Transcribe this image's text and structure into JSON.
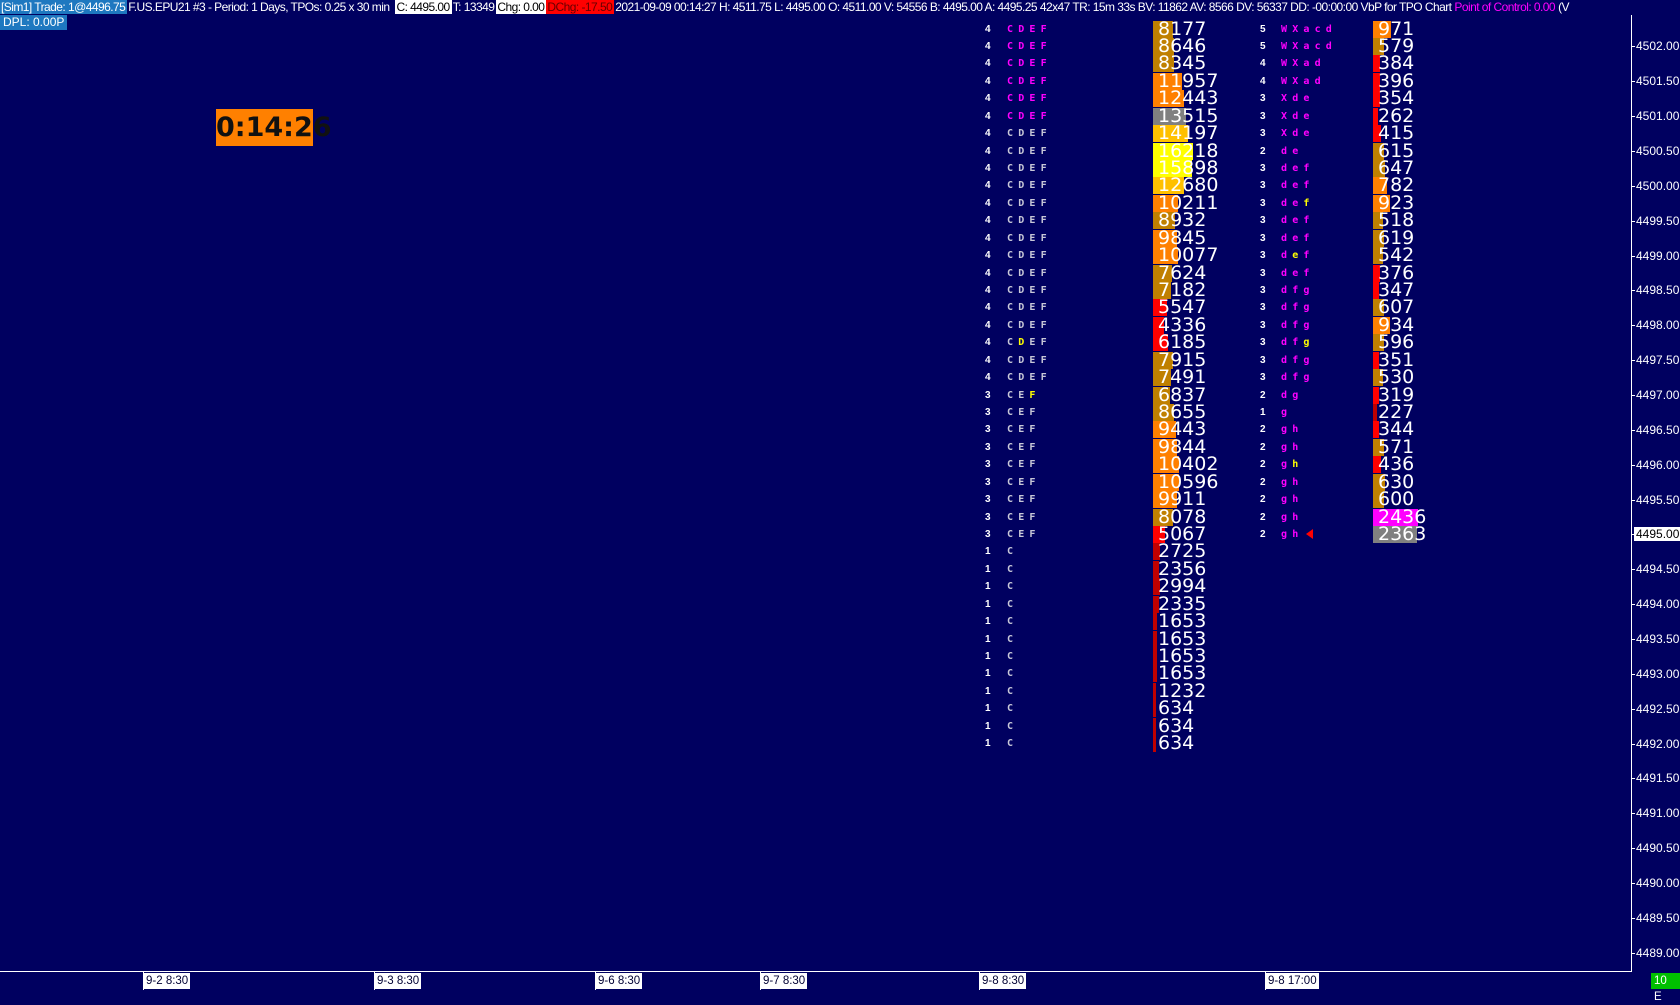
{
  "header": {
    "account_trade": "[Sim1]  Trade: 1@4496.75",
    "symbol_info": "F.US.EPU21  #3 - Period: 1 Days, TPOs: 0.25 x 30 min",
    "close": "C: 4495.00",
    "ticks": "T: 13349",
    "chg": "Chg: 0.00",
    "dchg": "DChg: -17.50",
    "stats": "2021-09-09 00:14:27 H: 4511.75 L: 4495.00 O: 4511.00 V: 54556 B: 4495.00 A: 4495.25 42x47 TR: 15m 33s BV: 11862 AV: 8566 DV: 56337 DD: -00:00:00 VbP for TPO Chart",
    "poc": "Point of Control: 0.00",
    "cut": "(V",
    "dpl": "DPL: 0.00P"
  },
  "timer": "0:14:26",
  "colors": {
    "background": "#000060",
    "gold": "#c08000",
    "orange": "#ff8000",
    "amber": "#ffc000",
    "yellow": "#ffff00",
    "gray": "#808080",
    "red": "#ff0000",
    "darkred": "#c00000",
    "magenta": "#ff00ff",
    "tpo_magenta": "#ff00ff",
    "tpo_gray": "#c8c8d8",
    "tpo_highlight": "#ffff00"
  },
  "price_axis": {
    "labels": [
      "4502.00",
      "4501.50",
      "4501.00",
      "4500.50",
      "4500.00",
      "4499.50",
      "4499.00",
      "4498.50",
      "4498.00",
      "4497.50",
      "4497.00",
      "4496.50",
      "4496.00",
      "4495.50",
      "4495.00",
      "4494.50",
      "4494.00",
      "4493.50",
      "4493.00",
      "4492.50",
      "4492.00",
      "4491.50",
      "4491.00",
      "4490.50",
      "4490.00",
      "4489.50",
      "4489.00"
    ],
    "current": "4495.00"
  },
  "time_axis": {
    "labels": [
      "9-2  8:30",
      "9-3  8:30",
      "9-6  8:30",
      "9-7  8:30",
      "9-8  8:30",
      "9-8  17:00"
    ],
    "badge": "10 E"
  },
  "profiles": [
    {
      "rows": [
        {
          "price": 4502.25,
          "count": "4",
          "letters": "CDEF",
          "vol": "8177",
          "color": "gold",
          "tpo": "magenta"
        },
        {
          "price": 4502.0,
          "count": "4",
          "letters": "CDEF",
          "vol": "8646",
          "color": "gold",
          "tpo": "magenta"
        },
        {
          "price": 4501.75,
          "count": "4",
          "letters": "CDEF",
          "vol": "8345",
          "color": "gold",
          "tpo": "magenta"
        },
        {
          "price": 4501.5,
          "count": "4",
          "letters": "CDEF",
          "vol": "11957",
          "color": "orange",
          "tpo": "magenta"
        },
        {
          "price": 4501.25,
          "count": "4",
          "letters": "CDEF",
          "vol": "12443",
          "color": "orange",
          "tpo": "magenta"
        },
        {
          "price": 4501.0,
          "count": "4",
          "letters": "CDEF",
          "vol": "13515",
          "color": "gray",
          "tpo": "magenta"
        },
        {
          "price": 4500.75,
          "count": "4",
          "letters": "CDEF",
          "vol": "14197",
          "color": "amber"
        },
        {
          "price": 4500.5,
          "count": "4",
          "letters": "CDEF",
          "vol": "16218",
          "color": "yellow"
        },
        {
          "price": 4500.25,
          "count": "4",
          "letters": "CDEF",
          "vol": "15898",
          "color": "yellow"
        },
        {
          "price": 4500.0,
          "count": "4",
          "letters": "CDEF",
          "vol": "12680",
          "color": "amber"
        },
        {
          "price": 4499.75,
          "count": "4",
          "letters": "CDEF",
          "vol": "10211",
          "color": "orange"
        },
        {
          "price": 4499.5,
          "count": "4",
          "letters": "CDEF",
          "vol": "8932",
          "color": "gold"
        },
        {
          "price": 4499.25,
          "count": "4",
          "letters": "CDEF",
          "vol": "9845",
          "color": "orange"
        },
        {
          "price": 4499.0,
          "count": "4",
          "letters": "CDEF",
          "vol": "10077",
          "color": "orange"
        },
        {
          "price": 4498.75,
          "count": "4",
          "letters": "CDEF",
          "vol": "7624",
          "color": "gold"
        },
        {
          "price": 4498.5,
          "count": "4",
          "letters": "CDEF",
          "vol": "7182",
          "color": "gold"
        },
        {
          "price": 4498.25,
          "count": "4",
          "letters": "CDEF",
          "vol": "5547",
          "color": "red"
        },
        {
          "price": 4498.0,
          "count": "4",
          "letters": "CDEF",
          "vol": "4336",
          "color": "red"
        },
        {
          "price": 4497.75,
          "count": "4",
          "letters": "CDEF",
          "vol": "6185",
          "color": "red",
          "hl": 1
        },
        {
          "price": 4497.5,
          "count": "4",
          "letters": "CDEF",
          "vol": "7915",
          "color": "gold"
        },
        {
          "price": 4497.25,
          "count": "4",
          "letters": "CDEF",
          "vol": "7491",
          "color": "gold"
        },
        {
          "price": 4497.0,
          "count": "3",
          "letters": "CEF",
          "vol": "6837",
          "color": "gold",
          "hl": 2
        },
        {
          "price": 4496.75,
          "count": "3",
          "letters": "CEF",
          "vol": "8655",
          "color": "gold"
        },
        {
          "price": 4496.5,
          "count": "3",
          "letters": "CEF",
          "vol": "9443",
          "color": "orange"
        },
        {
          "price": 4496.25,
          "count": "3",
          "letters": "CEF",
          "vol": "9844",
          "color": "orange"
        },
        {
          "price": 4496.0,
          "count": "3",
          "letters": "CEF",
          "vol": "10402",
          "color": "orange"
        },
        {
          "price": 4495.75,
          "count": "3",
          "letters": "CEF",
          "vol": "10596",
          "color": "orange"
        },
        {
          "price": 4495.5,
          "count": "3",
          "letters": "CEF",
          "vol": "9911",
          "color": "orange"
        },
        {
          "price": 4495.25,
          "count": "3",
          "letters": "CEF",
          "vol": "8078",
          "color": "gold"
        },
        {
          "price": 4495.0,
          "count": "3",
          "letters": "CEF",
          "vol": "5067",
          "color": "red"
        },
        {
          "price": 4494.75,
          "count": "1",
          "letters": "C",
          "vol": "2725",
          "color": "darkred"
        },
        {
          "price": 4494.5,
          "count": "1",
          "letters": "C",
          "vol": "2356",
          "color": "darkred"
        },
        {
          "price": 4494.25,
          "count": "1",
          "letters": "C",
          "vol": "2994",
          "color": "darkred"
        },
        {
          "price": 4494.0,
          "count": "1",
          "letters": "C",
          "vol": "2335",
          "color": "darkred"
        },
        {
          "price": 4493.75,
          "count": "1",
          "letters": "C",
          "vol": "1653",
          "color": "darkred"
        },
        {
          "price": 4493.5,
          "count": "1",
          "letters": "C",
          "vol": "1653",
          "color": "darkred"
        },
        {
          "price": 4493.25,
          "count": "1",
          "letters": "C",
          "vol": "1653",
          "color": "darkred"
        },
        {
          "price": 4493.0,
          "count": "1",
          "letters": "C",
          "vol": "1653",
          "color": "darkred"
        },
        {
          "price": 4492.75,
          "count": "1",
          "letters": "C",
          "vol": "1232",
          "color": "darkred"
        },
        {
          "price": 4492.5,
          "count": "1",
          "letters": "C",
          "vol": "634",
          "color": "darkred"
        },
        {
          "price": 4492.25,
          "count": "1",
          "letters": "C",
          "vol": "634",
          "color": "darkred"
        },
        {
          "price": 4492.0,
          "count": "1",
          "letters": "C",
          "vol": "634",
          "color": "darkred"
        }
      ]
    },
    {
      "rows": [
        {
          "price": 4502.25,
          "count": "5",
          "letters": "WXacd",
          "vol": "971",
          "color": "orange"
        },
        {
          "price": 4502.0,
          "count": "5",
          "letters": "WXacd",
          "vol": "579",
          "color": "gold"
        },
        {
          "price": 4501.75,
          "count": "4",
          "letters": "WXad",
          "vol": "384",
          "color": "red"
        },
        {
          "price": 4501.5,
          "count": "4",
          "letters": "WXad",
          "vol": "396",
          "color": "red"
        },
        {
          "price": 4501.25,
          "count": "3",
          "letters": "Xde",
          "vol": "354",
          "color": "red"
        },
        {
          "price": 4501.0,
          "count": "3",
          "letters": "Xde",
          "vol": "262",
          "color": "red"
        },
        {
          "price": 4500.75,
          "count": "3",
          "letters": "Xde",
          "vol": "415",
          "color": "red"
        },
        {
          "price": 4500.5,
          "count": "2",
          "letters": "de",
          "vol": "615",
          "color": "gold"
        },
        {
          "price": 4500.25,
          "count": "3",
          "letters": "def",
          "vol": "647",
          "color": "gold"
        },
        {
          "price": 4500.0,
          "count": "3",
          "letters": "def",
          "vol": "782",
          "color": "orange"
        },
        {
          "price": 4499.75,
          "count": "3",
          "letters": "def",
          "vol": "923",
          "color": "orange",
          "hl": 2
        },
        {
          "price": 4499.5,
          "count": "3",
          "letters": "def",
          "vol": "518",
          "color": "gold"
        },
        {
          "price": 4499.25,
          "count": "3",
          "letters": "def",
          "vol": "619",
          "color": "gold"
        },
        {
          "price": 4499.0,
          "count": "3",
          "letters": "def",
          "vol": "542",
          "color": "gold",
          "hl": 1
        },
        {
          "price": 4498.75,
          "count": "3",
          "letters": "def",
          "vol": "376",
          "color": "red"
        },
        {
          "price": 4498.5,
          "count": "3",
          "letters": "dfg",
          "vol": "347",
          "color": "red"
        },
        {
          "price": 4498.25,
          "count": "3",
          "letters": "dfg",
          "vol": "607",
          "color": "gold"
        },
        {
          "price": 4498.0,
          "count": "3",
          "letters": "dfg",
          "vol": "934",
          "color": "orange"
        },
        {
          "price": 4497.75,
          "count": "3",
          "letters": "dfg",
          "vol": "596",
          "color": "gold",
          "hl": 2
        },
        {
          "price": 4497.5,
          "count": "3",
          "letters": "dfg",
          "vol": "351",
          "color": "red"
        },
        {
          "price": 4497.25,
          "count": "3",
          "letters": "dfg",
          "vol": "530",
          "color": "gold"
        },
        {
          "price": 4497.0,
          "count": "2",
          "letters": "dg",
          "vol": "319",
          "color": "red"
        },
        {
          "price": 4496.75,
          "count": "1",
          "letters": "g",
          "vol": "227",
          "color": "darkred"
        },
        {
          "price": 4496.5,
          "count": "2",
          "letters": "gh",
          "vol": "344",
          "color": "red"
        },
        {
          "price": 4496.25,
          "count": "2",
          "letters": "gh",
          "vol": "571",
          "color": "gold"
        },
        {
          "price": 4496.0,
          "count": "2",
          "letters": "gh",
          "vol": "436",
          "color": "red",
          "hl": 1
        },
        {
          "price": 4495.75,
          "count": "2",
          "letters": "gh",
          "vol": "630",
          "color": "gold"
        },
        {
          "price": 4495.5,
          "count": "2",
          "letters": "gh",
          "vol": "600",
          "color": "gold"
        },
        {
          "price": 4495.25,
          "count": "2",
          "letters": "gh",
          "vol": "2436",
          "color": "magenta"
        },
        {
          "price": 4495.0,
          "count": "2",
          "letters": "gh",
          "vol": "2363",
          "color": "gray",
          "arrow": true
        }
      ]
    }
  ]
}
